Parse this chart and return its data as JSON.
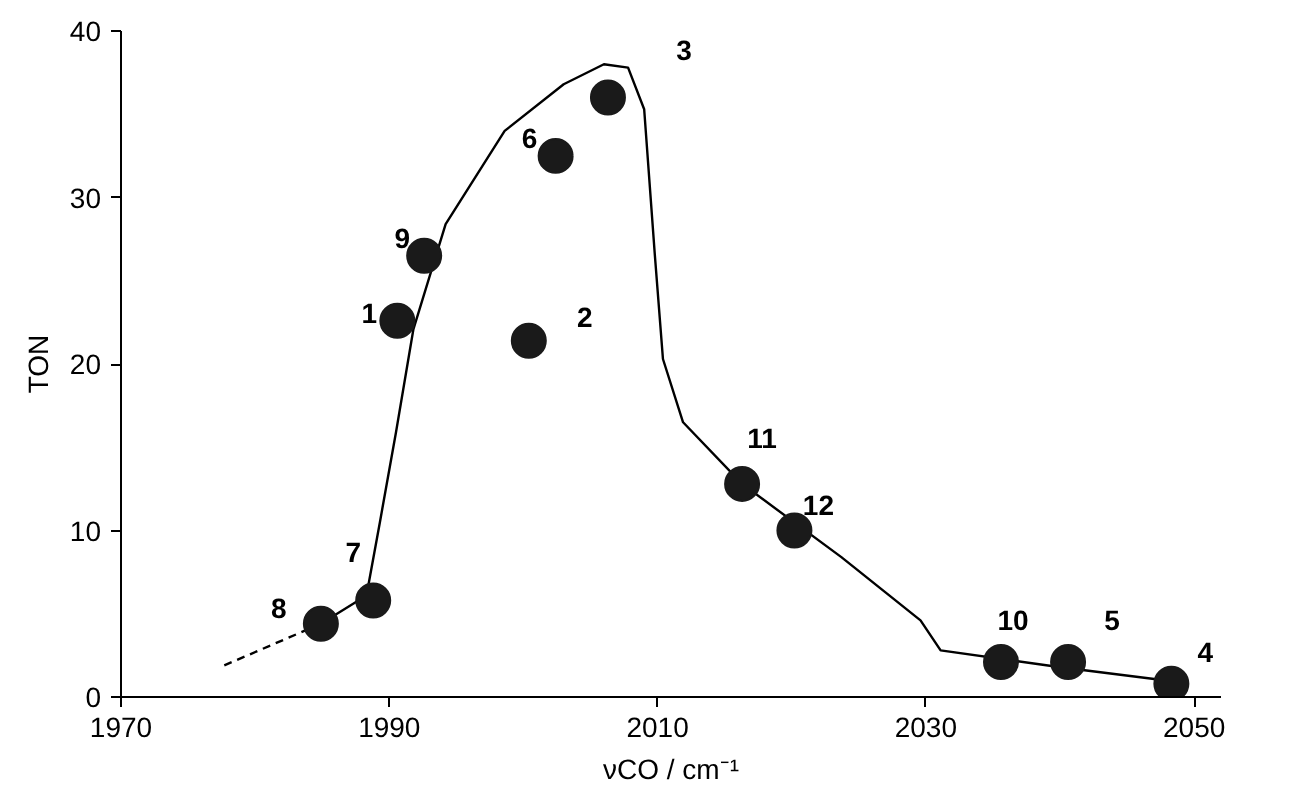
{
  "chart_data": {
    "type": "scatter",
    "xlabel": "νCO / cm⁻¹",
    "ylabel": "TON",
    "xlim": [
      1970,
      2052
    ],
    "ylim": [
      0,
      40
    ],
    "xticks": [
      1970,
      1990,
      2010,
      2030,
      2050
    ],
    "yticks": [
      0,
      10,
      20,
      30,
      40
    ],
    "grid": false,
    "series": [
      {
        "type": "line",
        "color": "#000000",
        "line_style": "dashed",
        "marker": "none",
        "x": [
          1977.7,
          1984.9
        ],
        "values": [
          1.9,
          4.4
        ]
      },
      {
        "type": "line",
        "color": "#000000",
        "line_style": "solid",
        "marker": "none",
        "x": [
          1984.9,
          1988.3,
          1989.3,
          1990.5,
          1991.8,
          1994.2,
          1998.6,
          2003,
          2006,
          2007.8,
          2009,
          2009.8,
          2010.4,
          2011.9,
          2016.3,
          2023.7,
          2029.6,
          2031.1,
          2039.9,
          2048.8
        ],
        "values": [
          4.4,
          6.1,
          10.5,
          15.9,
          22.1,
          28.4,
          34,
          36.8,
          38,
          37.8,
          35.3,
          26.5,
          20.3,
          16.5,
          12.8,
          8.4,
          4.6,
          2.8,
          1.8,
          0.9
        ]
      },
      {
        "color": "#1a1a1a",
        "marker": "circle",
        "x": [
          1984.9,
          1988.8,
          1990.6,
          1992.6,
          2000.4,
          2002.4,
          2006.3,
          2016.3,
          2020.2,
          2035.6,
          2040.6,
          2048.3
        ],
        "values": [
          4.4,
          5.8,
          22.6,
          26.5,
          21.4,
          32.5,
          36,
          12.8,
          10,
          2.1,
          2.1,
          0.8
        ]
      }
    ],
    "annotations": [
      "8",
      "7",
      "1",
      "9",
      "2",
      "6",
      "3",
      "11",
      "12",
      "10",
      "5",
      "4"
    ]
  }
}
